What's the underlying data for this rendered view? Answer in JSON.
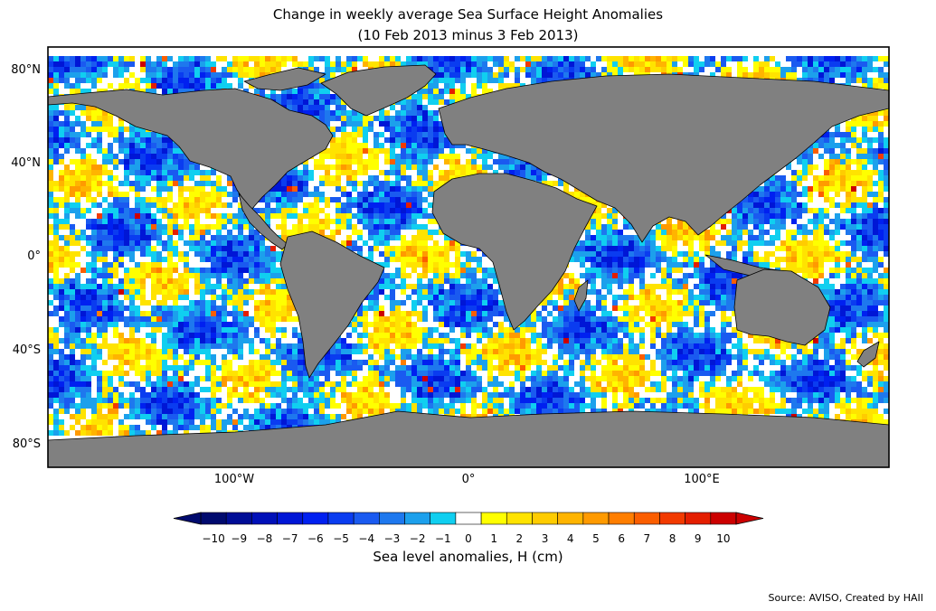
{
  "title": "Change in weekly average Sea Surface Height Anomalies",
  "subtitle": "(10 Feb 2013 minus 3 Feb 2013)",
  "lat_labels": [
    "80°N",
    "40°N",
    "0°",
    "40°S",
    "80°S"
  ],
  "lat_values": [
    80,
    40,
    0,
    -40,
    -80
  ],
  "lon_labels": [
    "100°W",
    "0°",
    "100°E"
  ],
  "lon_values": [
    -100,
    0,
    100
  ],
  "colorbar": {
    "label": "Sea level anomalies, H (cm)",
    "ticks": [
      "−10",
      "−9",
      "−8",
      "−7",
      "−6",
      "−5",
      "−4",
      "−3",
      "−2",
      "−1",
      "0",
      "1",
      "2",
      "3",
      "4",
      "5",
      "6",
      "7",
      "8",
      "9",
      "10"
    ],
    "colors": [
      "#000a6e",
      "#000d96",
      "#0010b8",
      "#0016d6",
      "#0020f0",
      "#0a3cf0",
      "#1a5af0",
      "#1e78ee",
      "#1ca0ec",
      "#10cff0",
      "#ffffff",
      "#ffff00",
      "#ffe300",
      "#ffcc00",
      "#ffb400",
      "#ff9a00",
      "#ff7e00",
      "#fb5e00",
      "#f23a00",
      "#e41e00",
      "#cc0000"
    ]
  },
  "colors": {
    "land": "#808080",
    "ocean_no_data": "#ffffff"
  },
  "source": "Source: AVISO, Created by HAII"
}
